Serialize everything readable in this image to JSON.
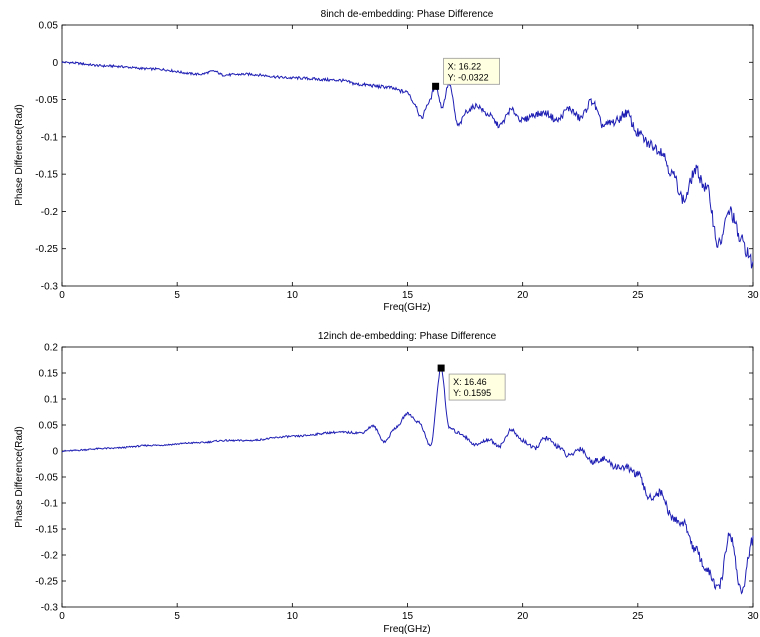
{
  "chart_data": [
    {
      "type": "line",
      "title": "8inch de-embedding: Phase Difference",
      "xlabel": "Freq(GHz)",
      "ylabel": "Phase Difference(Rad)",
      "xlim": [
        0,
        30
      ],
      "ylim": [
        -0.3,
        0.05
      ],
      "xticks": [
        "0",
        "5",
        "10",
        "15",
        "20",
        "25",
        "30"
      ],
      "yticks": [
        "0.05",
        "0",
        "-0.05",
        "-0.1",
        "-0.15",
        "-0.2",
        "-0.25",
        "-0.3"
      ],
      "grid": false,
      "color": "#1f1fb4",
      "datatip": {
        "x_text": "X: 16.22",
        "y_text": "Y: -0.0322",
        "x": 16.22,
        "y": -0.0322
      },
      "x": [
        0,
        2,
        4,
        6,
        6.6,
        7,
        8,
        10,
        12,
        13,
        14,
        15,
        15.3,
        15.6,
        15.9,
        16.22,
        16.5,
        16.8,
        17.2,
        17.6,
        18,
        18.5,
        19,
        19.5,
        20,
        20.5,
        21,
        21.5,
        22,
        22.5,
        23,
        23.5,
        24,
        24.5,
        25,
        25.5,
        26,
        26.5,
        27,
        27.5,
        28,
        28.5,
        29,
        29.5,
        30
      ],
      "y": [
        0,
        -0.005,
        -0.009,
        -0.016,
        -0.012,
        -0.017,
        -0.016,
        -0.021,
        -0.024,
        -0.03,
        -0.033,
        -0.04,
        -0.055,
        -0.075,
        -0.055,
        -0.0322,
        -0.06,
        -0.028,
        -0.085,
        -0.065,
        -0.058,
        -0.07,
        -0.085,
        -0.064,
        -0.078,
        -0.07,
        -0.068,
        -0.078,
        -0.062,
        -0.075,
        -0.052,
        -0.085,
        -0.08,
        -0.068,
        -0.095,
        -0.11,
        -0.118,
        -0.15,
        -0.185,
        -0.145,
        -0.17,
        -0.245,
        -0.2,
        -0.24,
        -0.27
      ]
    },
    {
      "type": "line",
      "title": "12inch de-embedding: Phase Difference",
      "xlabel": "Freq(GHz)",
      "ylabel": "Phase Difference(Rad)",
      "xlim": [
        0,
        30
      ],
      "ylim": [
        -0.3,
        0.2
      ],
      "xticks": [
        "0",
        "5",
        "10",
        "15",
        "20",
        "25",
        "30"
      ],
      "yticks": [
        "0.2",
        "0.15",
        "0.1",
        "0.05",
        "0",
        "-0.05",
        "-0.1",
        "-0.15",
        "-0.2",
        "-0.25",
        "-0.3"
      ],
      "grid": false,
      "color": "#1f1fb4",
      "datatip": {
        "x_text": "X: 16.46",
        "y_text": "Y: 0.1595",
        "x": 16.46,
        "y": 0.1595
      },
      "x": [
        0,
        2,
        4,
        6,
        7,
        8,
        10,
        12,
        13,
        13.5,
        14,
        14.5,
        15,
        15.5,
        16,
        16.46,
        16.8,
        17.2,
        18,
        18.5,
        19,
        19.5,
        20,
        20.5,
        21,
        21.5,
        22,
        22.5,
        23,
        23.5,
        24,
        24.5,
        25,
        25.5,
        26,
        26.5,
        27,
        27.5,
        28,
        28.5,
        29,
        29.5,
        30
      ],
      "y": [
        0,
        0.005,
        0.011,
        0.016,
        0.02,
        0.02,
        0.028,
        0.036,
        0.035,
        0.048,
        0.018,
        0.045,
        0.072,
        0.055,
        0.01,
        0.1595,
        0.045,
        0.035,
        0.012,
        0.022,
        0.01,
        0.04,
        0.02,
        0.005,
        0.025,
        0.01,
        -0.01,
        0.005,
        -0.02,
        -0.015,
        -0.03,
        -0.032,
        -0.045,
        -0.09,
        -0.08,
        -0.13,
        -0.14,
        -0.19,
        -0.23,
        -0.265,
        -0.16,
        -0.27,
        -0.17
      ]
    }
  ]
}
